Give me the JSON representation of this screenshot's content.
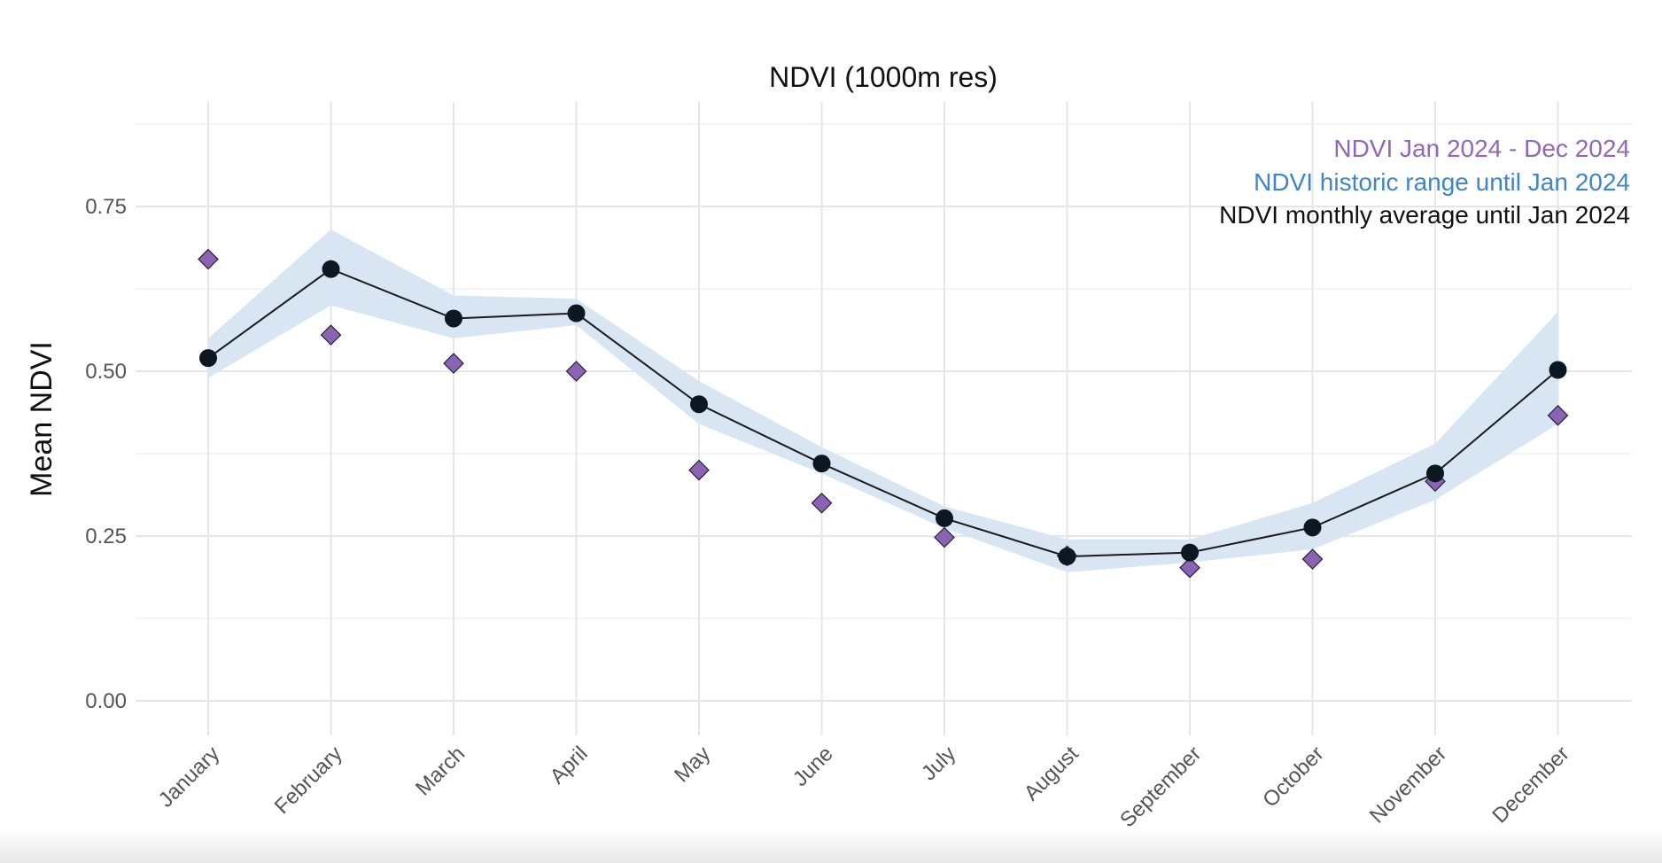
{
  "colors": {
    "background": "#ffffff",
    "grid_major": "#e6e6e6",
    "grid_minor": "#f1f1f1",
    "ribbon": "#d8e6f4",
    "average_line": "#1a1a1a",
    "average_point": "#0d1722",
    "current_point": "#8b63b5",
    "legend_current": "#9168b8",
    "legend_historic": "#3f86c8",
    "legend_average": "#111111"
  },
  "chart_data": {
    "type": "line",
    "title": "NDVI (1000m res)",
    "xlabel": "",
    "ylabel": "Mean NDVI",
    "categories": [
      "January",
      "February",
      "March",
      "April",
      "May",
      "June",
      "July",
      "August",
      "September",
      "October",
      "November",
      "December"
    ],
    "ylim": [
      -0.06,
      0.88
    ],
    "y_ticks": [
      0.0,
      0.25,
      0.5,
      0.75
    ],
    "y_tick_labels": [
      "0.00",
      "0.25",
      "0.50",
      "0.75"
    ],
    "grid": true,
    "legend_position": "top-right",
    "series": [
      {
        "name": "NDVI Jan 2024 - Dec 2024",
        "kind": "points",
        "marker": "diamond",
        "values": [
          0.67,
          0.555,
          0.512,
          0.5,
          0.35,
          0.3,
          0.248,
          0.22,
          0.202,
          0.215,
          0.333,
          0.433
        ]
      },
      {
        "name": "NDVI historic range until Jan 2024",
        "kind": "ribbon",
        "lower": [
          0.49,
          0.6,
          0.55,
          0.57,
          0.42,
          0.345,
          0.262,
          0.195,
          0.21,
          0.23,
          0.305,
          0.42
        ],
        "upper": [
          0.55,
          0.715,
          0.615,
          0.61,
          0.485,
          0.385,
          0.295,
          0.245,
          0.245,
          0.3,
          0.39,
          0.59
        ]
      },
      {
        "name": "NDVI monthly average until Jan 2024",
        "kind": "line+points",
        "values": [
          0.52,
          0.655,
          0.58,
          0.588,
          0.45,
          0.36,
          0.277,
          0.219,
          0.225,
          0.263,
          0.345,
          0.502
        ]
      }
    ]
  }
}
